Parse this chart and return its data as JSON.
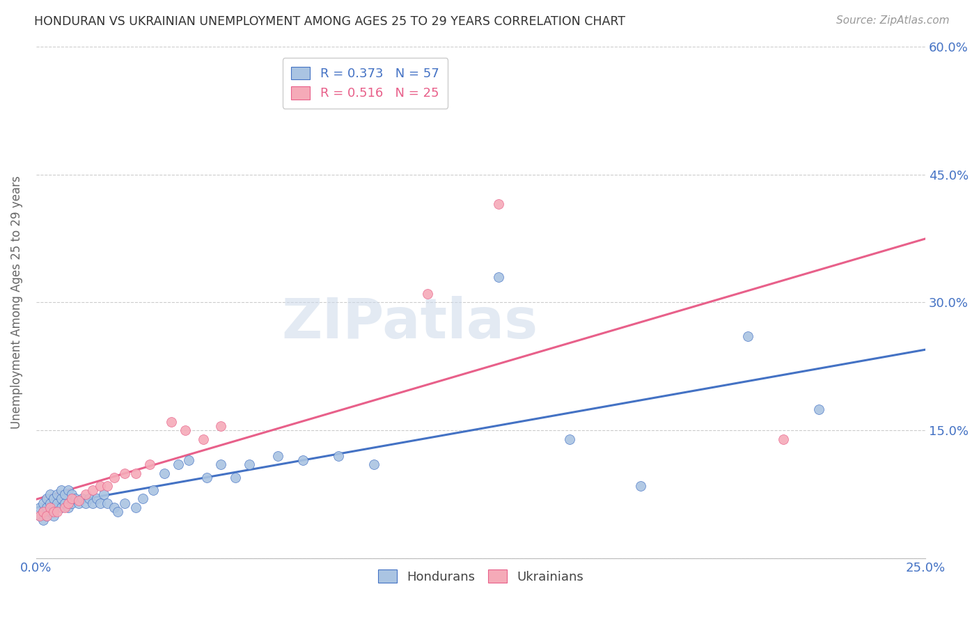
{
  "title": "HONDURAN VS UKRAINIAN UNEMPLOYMENT AMONG AGES 25 TO 29 YEARS CORRELATION CHART",
  "source": "Source: ZipAtlas.com",
  "ylabel": "Unemployment Among Ages 25 to 29 years",
  "xlim": [
    0.0,
    0.25
  ],
  "ylim": [
    0.0,
    0.6
  ],
  "xticks": [
    0.0,
    0.05,
    0.1,
    0.15,
    0.2,
    0.25
  ],
  "yticks": [
    0.0,
    0.15,
    0.3,
    0.45,
    0.6
  ],
  "right_ytick_labels": [
    "",
    "15.0%",
    "30.0%",
    "45.0%",
    "60.0%"
  ],
  "left_ytick_labels": [
    "",
    "",
    "",
    "",
    ""
  ],
  "xtick_labels": [
    "0.0%",
    "",
    "",
    "",
    "",
    "25.0%"
  ],
  "legend_hondurans": "R = 0.373   N = 57",
  "legend_ukrainians": "R = 0.516   N = 25",
  "hondurans_color": "#aac4e2",
  "ukrainians_color": "#f5aab8",
  "trend_hondurans_color": "#4472c4",
  "trend_ukrainians_color": "#e8608a",
  "background_color": "#ffffff",
  "watermark": "ZIPatlas",
  "hondurans_x": [
    0.001,
    0.001,
    0.002,
    0.002,
    0.002,
    0.003,
    0.003,
    0.003,
    0.004,
    0.004,
    0.004,
    0.005,
    0.005,
    0.005,
    0.006,
    0.006,
    0.007,
    0.007,
    0.007,
    0.008,
    0.008,
    0.009,
    0.009,
    0.01,
    0.01,
    0.011,
    0.012,
    0.013,
    0.014,
    0.015,
    0.016,
    0.017,
    0.018,
    0.019,
    0.02,
    0.022,
    0.023,
    0.025,
    0.028,
    0.03,
    0.033,
    0.036,
    0.04,
    0.043,
    0.048,
    0.052,
    0.056,
    0.06,
    0.068,
    0.075,
    0.085,
    0.095,
    0.13,
    0.15,
    0.17,
    0.2,
    0.22
  ],
  "hondurans_y": [
    0.05,
    0.06,
    0.045,
    0.055,
    0.065,
    0.05,
    0.06,
    0.07,
    0.055,
    0.065,
    0.075,
    0.06,
    0.07,
    0.05,
    0.065,
    0.075,
    0.06,
    0.07,
    0.08,
    0.065,
    0.075,
    0.06,
    0.08,
    0.065,
    0.075,
    0.07,
    0.065,
    0.07,
    0.065,
    0.07,
    0.065,
    0.07,
    0.065,
    0.075,
    0.065,
    0.06,
    0.055,
    0.065,
    0.06,
    0.07,
    0.08,
    0.1,
    0.11,
    0.115,
    0.095,
    0.11,
    0.095,
    0.11,
    0.12,
    0.115,
    0.12,
    0.11,
    0.33,
    0.14,
    0.085,
    0.26,
    0.175
  ],
  "ukrainians_x": [
    0.001,
    0.002,
    0.003,
    0.004,
    0.005,
    0.006,
    0.008,
    0.009,
    0.01,
    0.012,
    0.014,
    0.016,
    0.018,
    0.02,
    0.022,
    0.025,
    0.028,
    0.032,
    0.038,
    0.042,
    0.047,
    0.052,
    0.11,
    0.13,
    0.21
  ],
  "ukrainians_y": [
    0.05,
    0.055,
    0.05,
    0.06,
    0.055,
    0.055,
    0.06,
    0.065,
    0.07,
    0.068,
    0.075,
    0.08,
    0.085,
    0.085,
    0.095,
    0.1,
    0.1,
    0.11,
    0.16,
    0.15,
    0.14,
    0.155,
    0.31,
    0.415,
    0.14
  ]
}
